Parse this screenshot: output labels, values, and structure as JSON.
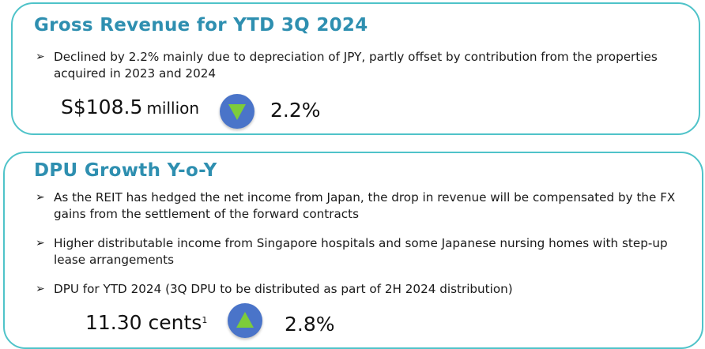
{
  "revenue": {
    "title": "Gross Revenue for YTD 3Q 2024",
    "bullets": [
      "Declined by 2.2% mainly due to depreciation of JPY, partly offset by contribution from the properties acquired in 2023 and 2024"
    ],
    "amount": "S$108.5",
    "unit": "million",
    "direction_icon": "down-triangle-icon",
    "change_pct": "2.2%"
  },
  "dpu": {
    "title": "DPU Growth Y-o-Y",
    "bullets": [
      "As the REIT has hedged the net income from Japan, the drop in revenue will be compensated by the FX gains from the settlement of the forward contracts",
      "Higher distributable income from Singapore hospitals and some Japanese nursing homes with step-up lease arrangements",
      "DPU for YTD 2024 (3Q DPU to be distributed as part of 2H 2024 distribution)"
    ],
    "amount": "11.30 cents",
    "footnote": "1",
    "direction_icon": "up-triangle-icon",
    "change_pct": "2.8%"
  },
  "bullet_glyph": "➢",
  "colors": {
    "accent_teal": "#4fc3c9",
    "title_blue": "#2e8fb0",
    "icon_circle": "#4a74c9",
    "down_arrow": "#7dcc3a",
    "up_arrow": "#7dcc3a"
  }
}
